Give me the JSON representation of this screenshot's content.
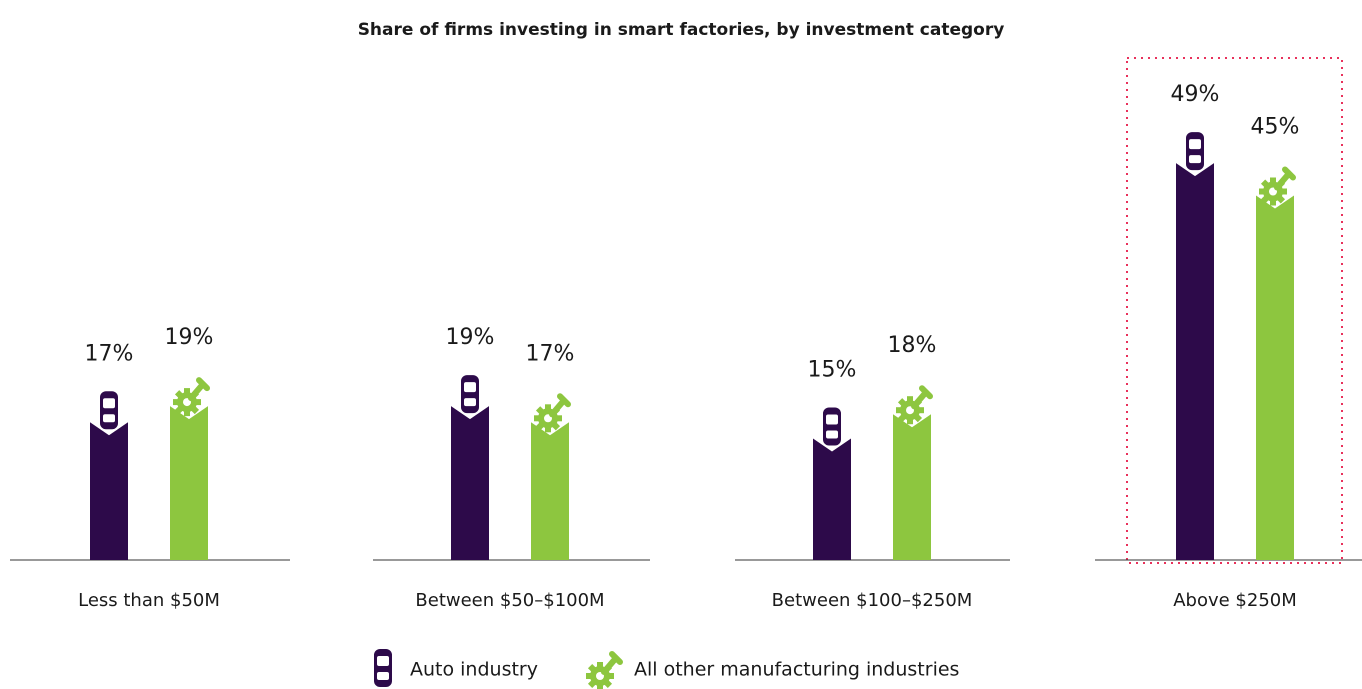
{
  "chart_data": {
    "type": "bar",
    "title": "Share of firms investing in smart factories, by investment category",
    "categories": [
      "Less than $50M",
      "Between $50–$100M",
      "Between $100–$250M",
      "Above $250M"
    ],
    "series": [
      {
        "name": "Auto industry",
        "color": "#2d0a4a",
        "values": [
          17,
          19,
          15,
          49
        ],
        "value_labels": [
          "17%",
          "19%",
          "15%",
          "49%"
        ]
      },
      {
        "name": "All other manufacturing industries",
        "color": "#8dc63f",
        "values": [
          19,
          17,
          18,
          45
        ],
        "value_labels": [
          "19%",
          "17%",
          "18%",
          "45%"
        ]
      }
    ]
  }
}
